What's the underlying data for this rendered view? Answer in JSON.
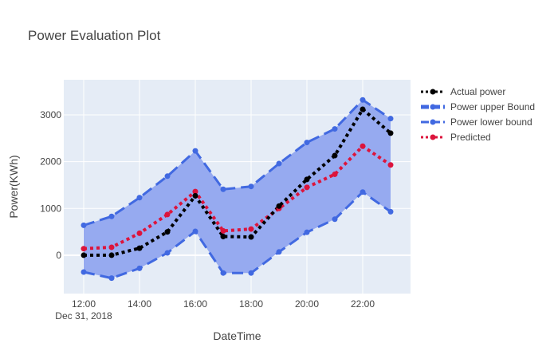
{
  "chart_data": {
    "type": "line",
    "title": "Power Evaluation Plot",
    "xlabel": "DateTime",
    "ylabel": "Power(KWh)",
    "x": [
      "12:00",
      "13:00",
      "14:00",
      "15:00",
      "16:00",
      "17:00",
      "18:00",
      "19:00",
      "20:00",
      "21:00",
      "22:00",
      "23:00"
    ],
    "x_tick_labels": [
      "12:00",
      "14:00",
      "16:00",
      "18:00",
      "20:00",
      "22:00"
    ],
    "x_date_label": "Dec 31, 2018",
    "y_ticks": [
      0,
      1000,
      2000,
      3000
    ],
    "ylim": [
      -820,
      3750
    ],
    "grid": true,
    "legend_position": "top-right",
    "series": [
      {
        "name": "Actual power",
        "color": "#000000",
        "dash": "dot",
        "values": [
          0,
          0,
          150,
          500,
          1270,
          400,
          390,
          1050,
          1620,
          2130,
          3120,
          2610
        ]
      },
      {
        "name": "Power upper Bound",
        "color": "#4169e1",
        "dash": "dash",
        "fill": "#96aaf0",
        "values": [
          640,
          830,
          1230,
          1690,
          2230,
          1410,
          1470,
          1960,
          2410,
          2700,
          3320,
          2920
        ]
      },
      {
        "name": "Power lower bound",
        "color": "#4169e1",
        "dash": "dash",
        "values": [
          -360,
          -490,
          -280,
          50,
          510,
          -380,
          -380,
          70,
          490,
          770,
          1350,
          930
        ]
      },
      {
        "name": "Predicted",
        "color": "#dc143c",
        "dash": "dot",
        "values": [
          140,
          170,
          470,
          870,
          1360,
          520,
          560,
          1000,
          1450,
          1730,
          2330,
          1930
        ]
      }
    ]
  }
}
